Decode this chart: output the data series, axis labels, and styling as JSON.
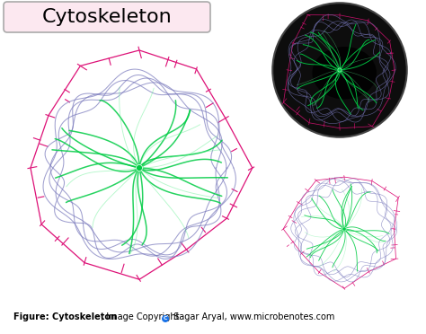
{
  "title": "Cytoskeleton",
  "title_bg": "#fce8f0",
  "title_fontsize": 16,
  "bg_color": "#ffffff",
  "footer_bold": "Figure: Cytoskeleton",
  "footer_normal": ", Image Copyright ",
  "footer_author": " Sagar Aryal, www.microbenotes.com",
  "footer_fontsize": 7,
  "green_color": "#00cc44",
  "green_light": "#55ee88",
  "pink_color": "#dd1177",
  "blue_color": "#7777bb",
  "dark_bg": "#0d0d0d",
  "nucleus_color": "#050505"
}
